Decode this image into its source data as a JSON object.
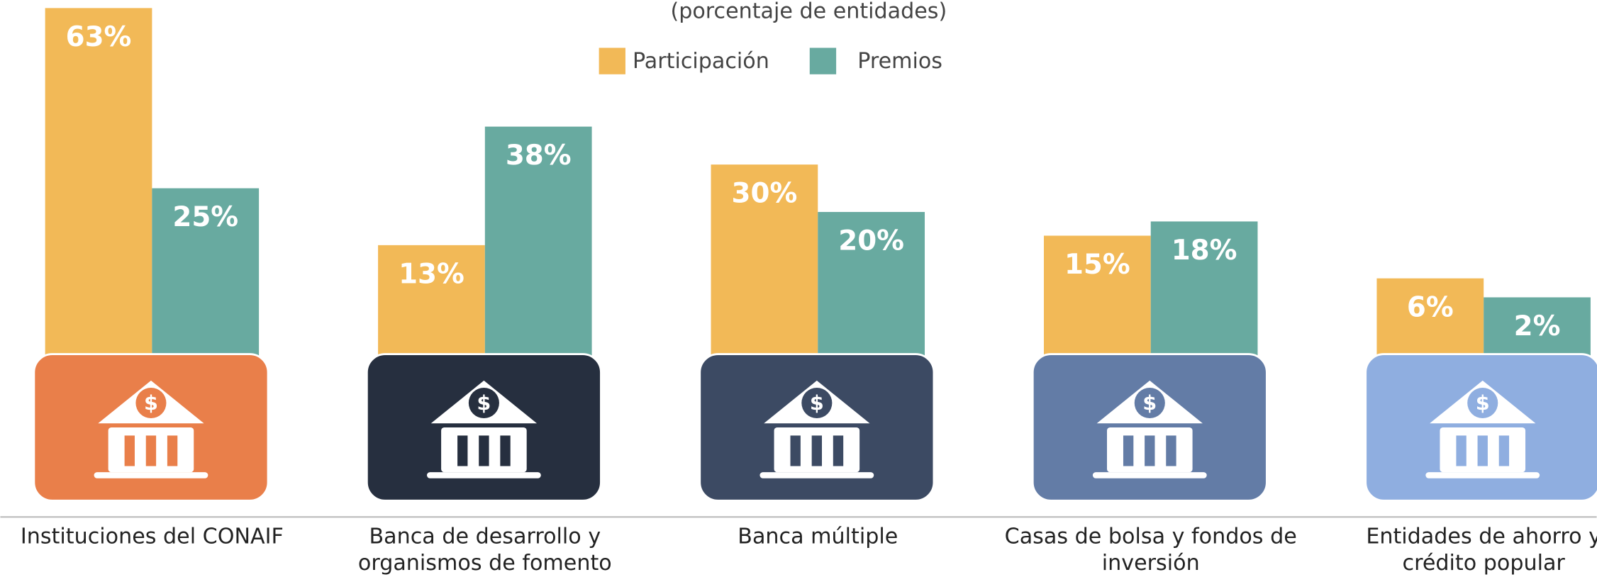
{
  "chart_data": {
    "type": "bar",
    "subtitle": "(porcentaje de entidades)",
    "categories": [
      "Instituciones del CONAIF",
      "Banca de desarrollo y organismos de fomento",
      "Banca múltiple",
      "Casas de bolsa y fondos de inversión",
      "Entidades de ahorro y crédito popular"
    ],
    "series": [
      {
        "name": "Participación",
        "color": "#F2B957",
        "values": [
          63,
          13,
          30,
          15,
          6
        ],
        "value_labels": [
          "63%",
          "13%",
          "30%",
          "15%",
          "6%"
        ]
      },
      {
        "name": "Premios",
        "color": "#68AAA0",
        "values": [
          25,
          38,
          20,
          18,
          2
        ],
        "value_labels": [
          "25%",
          "38%",
          "20%",
          "18%",
          "2%"
        ]
      }
    ],
    "legend": "top",
    "box_colors": [
      "#E97F4A",
      "#262F3F",
      "#3C4A63",
      "#637CA6",
      "#8FAEE0"
    ]
  }
}
